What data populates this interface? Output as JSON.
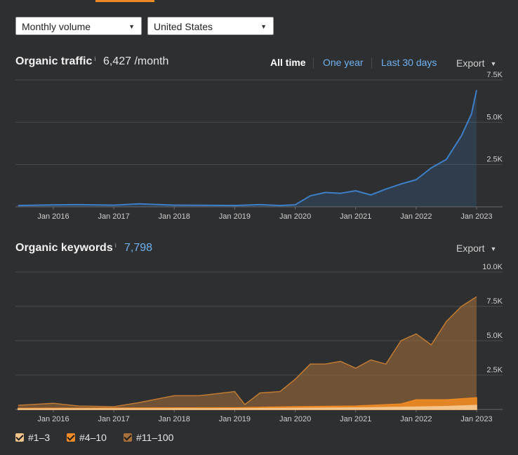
{
  "controls": {
    "volume_select": "Monthly volume",
    "country_select": "United States"
  },
  "traffic": {
    "title": "Organic traffic",
    "info": "i",
    "value": "6,427 /month",
    "ranges": [
      "All time",
      "One year",
      "Last 30 days"
    ],
    "export_label": "Export"
  },
  "keywords": {
    "title": "Organic keywords",
    "info": "i",
    "value": "7,798",
    "export_label": "Export"
  },
  "legend": [
    {
      "label": "#1–3",
      "color": "#f5c48a"
    },
    {
      "label": "#4–10",
      "color": "#f08a24"
    },
    {
      "label": "#11–100",
      "color": "#a8703a"
    }
  ],
  "colors": {
    "traffic_line": "#3d7fc7",
    "accent": "#f08a24",
    "link": "#6fb3f2"
  },
  "chart_data": [
    {
      "type": "area",
      "title": "Organic traffic",
      "x_ticks": [
        "Jan 2016",
        "Jan 2017",
        "Jan 2018",
        "Jan 2019",
        "Jan 2020",
        "Jan 2021",
        "Jan 2022",
        "Jan 2023"
      ],
      "y_ticks": [
        "2.5K",
        "5.0K",
        "7.5K"
      ],
      "ylim": [
        0,
        7500
      ],
      "series": [
        {
          "x": [
            "2015-06",
            "2016-01",
            "2016-06",
            "2017-01",
            "2017-06",
            "2018-01",
            "2018-06",
            "2019-01",
            "2019-06",
            "2019-10",
            "2020-01",
            "2020-04",
            "2020-07",
            "2020-10",
            "2021-01",
            "2021-04",
            "2021-07",
            "2021-10",
            "2022-01",
            "2022-04",
            "2022-07",
            "2022-10",
            "2022-12",
            "2023-01"
          ],
          "values": [
            80,
            110,
            130,
            100,
            180,
            100,
            90,
            80,
            130,
            80,
            120,
            650,
            850,
            800,
            950,
            700,
            1050,
            1350,
            1600,
            2300,
            2800,
            4200,
            5500,
            6900
          ]
        }
      ]
    },
    {
      "type": "area",
      "title": "Organic keywords",
      "x_ticks": [
        "Jan 2016",
        "Jan 2017",
        "Jan 2018",
        "Jan 2019",
        "Jan 2020",
        "Jan 2021",
        "Jan 2022",
        "Jan 2023"
      ],
      "y_ticks": [
        "2.5K",
        "5.0K",
        "7.5K",
        "10.0K"
      ],
      "ylim": [
        0,
        10000
      ],
      "series": [
        {
          "name": "#11–100",
          "x": [
            "2015-06",
            "2016-01",
            "2016-06",
            "2017-01",
            "2017-06",
            "2018-01",
            "2018-06",
            "2019-01",
            "2019-03",
            "2019-06",
            "2019-10",
            "2020-01",
            "2020-04",
            "2020-07",
            "2020-10",
            "2021-01",
            "2021-04",
            "2021-07",
            "2021-10",
            "2022-01",
            "2022-04",
            "2022-07",
            "2022-10",
            "2023-01"
          ],
          "values": [
            300,
            450,
            250,
            200,
            500,
            1000,
            1000,
            1300,
            350,
            1200,
            1300,
            2200,
            3300,
            3300,
            3500,
            3000,
            3600,
            3300,
            5000,
            5500,
            4700,
            6400,
            7500,
            8200
          ]
        },
        {
          "name": "#4–10",
          "x": [
            "2015-06",
            "2019-01",
            "2020-01",
            "2021-01",
            "2021-10",
            "2022-01",
            "2022-07",
            "2023-01"
          ],
          "values": [
            80,
            120,
            200,
            250,
            400,
            700,
            700,
            850
          ]
        },
        {
          "name": "#1–3",
          "x": [
            "2015-06",
            "2019-01",
            "2020-01",
            "2021-01",
            "2022-01",
            "2022-07",
            "2023-01"
          ],
          "values": [
            40,
            50,
            80,
            110,
            180,
            220,
            300
          ]
        }
      ]
    }
  ]
}
